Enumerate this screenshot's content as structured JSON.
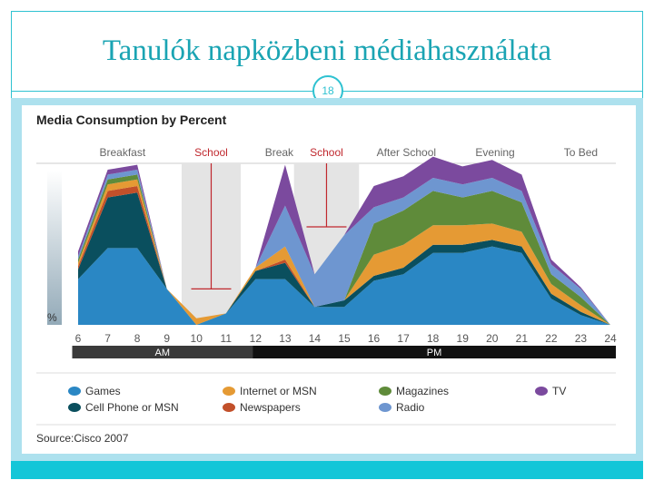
{
  "slide": {
    "title": "Tanulók napközbeni médiahasználata",
    "page_number": "18"
  },
  "chart_data": {
    "type": "area",
    "title": "Media Consumption by Percent",
    "ylabel": "%",
    "x": [
      6,
      7,
      8,
      9,
      10,
      11,
      12,
      13,
      14,
      15,
      16,
      17,
      18,
      19,
      20,
      21,
      22,
      23,
      24
    ],
    "x_tick_labels": [
      "6",
      "7",
      "8",
      "9",
      "10",
      "11",
      "12",
      "13",
      "14",
      "15",
      "16",
      "17",
      "18",
      "19",
      "20",
      "21",
      "22",
      "23",
      "24"
    ],
    "ylim": [
      0,
      100
    ],
    "series": [
      {
        "name": "Games",
        "color": "#2a87c4",
        "values": [
          28,
          47,
          47,
          22,
          0,
          7,
          28,
          28,
          11,
          11,
          27,
          31,
          44,
          44,
          48,
          44,
          16,
          6,
          0
        ]
      },
      {
        "name": "Cell Phone or MSN",
        "color": "#0a4f5e",
        "values": [
          6,
          31,
          34,
          0,
          0,
          0,
          5,
          10,
          0,
          4,
          3,
          4,
          5,
          5,
          4,
          4,
          3,
          2,
          0
        ]
      },
      {
        "name": "Newspapers",
        "color": "#c2502a",
        "values": [
          2,
          4,
          4,
          0,
          0,
          0,
          0,
          2,
          0,
          0,
          0,
          0,
          0,
          0,
          0,
          0,
          0,
          0,
          0
        ]
      },
      {
        "name": "Internet or MSN",
        "color": "#e59a34",
        "values": [
          2,
          4,
          4,
          0,
          4,
          0,
          2,
          8,
          0,
          0,
          13,
          14,
          12,
          12,
          10,
          9,
          6,
          4,
          0
        ]
      },
      {
        "name": "Magazines",
        "color": "#5f8b3a",
        "values": [
          2,
          3,
          3,
          0,
          0,
          0,
          0,
          0,
          0,
          0,
          19,
          21,
          21,
          17,
          20,
          18,
          6,
          5,
          0
        ]
      },
      {
        "name": "Radio",
        "color": "#6e96d0",
        "values": [
          2,
          3,
          3,
          0,
          0,
          0,
          0,
          25,
          20,
          40,
          10,
          8,
          8,
          8,
          8,
          7,
          6,
          5,
          0
        ]
      },
      {
        "name": "TV",
        "color": "#7b4a9e",
        "values": [
          3,
          3,
          3,
          0,
          0,
          0,
          0,
          25,
          0,
          0,
          13,
          13,
          13,
          11,
          11,
          10,
          3,
          1,
          0
        ]
      }
    ],
    "legend": {
      "placement": "bottom",
      "entries": [
        {
          "name": "Games",
          "color": "#2a87c4"
        },
        {
          "name": "Internet or MSN",
          "color": "#e59a34"
        },
        {
          "name": "Magazines",
          "color": "#5f8b3a"
        },
        {
          "name": "TV",
          "color": "#7b4a9e"
        },
        {
          "name": "Cell Phone or MSN",
          "color": "#0a4f5e"
        },
        {
          "name": "Newspapers",
          "color": "#c2502a"
        },
        {
          "name": "Radio",
          "color": "#6e96d0"
        }
      ]
    },
    "period_labels": [
      {
        "text": "Breakfast",
        "at": 7.5,
        "color": "#666666"
      },
      {
        "text": "School",
        "at": 10.5,
        "color": "#c0282e"
      },
      {
        "text": "Break",
        "at": 12.8,
        "color": "#666666"
      },
      {
        "text": "School",
        "at": 14.4,
        "color": "#c0282e"
      },
      {
        "text": "After School",
        "at": 17.1,
        "color": "#666666"
      },
      {
        "text": "Evening",
        "at": 20.1,
        "color": "#666666"
      },
      {
        "text": "To Bed",
        "at": 23.0,
        "color": "#666666"
      }
    ],
    "school_bands": [
      [
        9.5,
        11.5
      ],
      [
        13.3,
        15.5
      ]
    ],
    "school_markers": [
      {
        "at": 10.5,
        "top_value": 100,
        "bottom_value": 22
      },
      {
        "at": 14.4,
        "top_value": 100,
        "bottom_value": 60
      }
    ],
    "ampm": [
      {
        "label": "AM",
        "from": 5.8,
        "to": 11.9,
        "color": "#3a3a3a"
      },
      {
        "label": "PM",
        "from": 11.9,
        "to": 24.2,
        "color": "#111111"
      }
    ],
    "source_label": "Source:",
    "source_text": "Cisco 2007"
  }
}
